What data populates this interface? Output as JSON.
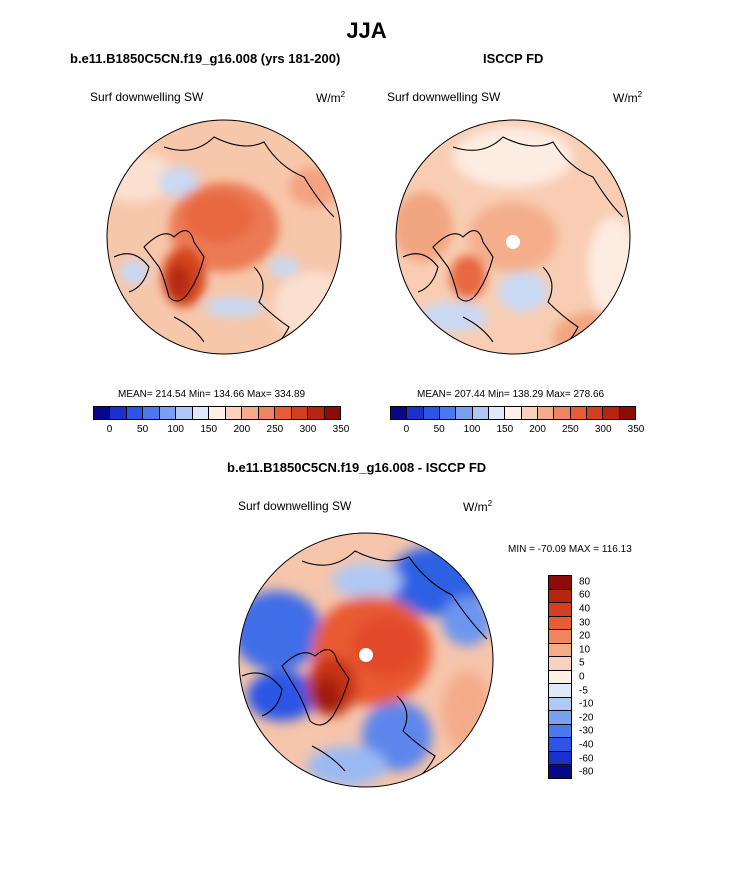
{
  "page_title": "JJA",
  "left_panel": {
    "title": "b.e11.B1850C5CN.f19_g16.008 (yrs 181-200)",
    "variable": "Surf downwelling SW",
    "units": "W/m",
    "units_exp": "2",
    "stats": "MEAN= 214.54  Min= 134.66  Max= 334.89"
  },
  "right_panel": {
    "title": "ISCCP FD",
    "variable": "Surf downwelling SW",
    "units": "W/m",
    "units_exp": "2",
    "stats": "MEAN= 207.44  Min= 138.29  Max= 278.66"
  },
  "horizontal_colorbar": {
    "colors": [
      "#08088a",
      "#1a2fcc",
      "#2a55e6",
      "#4a78ee",
      "#7aa0f2",
      "#b0c8f5",
      "#dfe9f9",
      "#fdf0e8",
      "#f9d2bd",
      "#f4ab8a",
      "#ee8460",
      "#e65c35",
      "#d43f1f",
      "#b52512",
      "#8c0d07"
    ],
    "ticks": [
      "0",
      "50",
      "100",
      "150",
      "200",
      "250",
      "300",
      "350"
    ]
  },
  "diff_panel": {
    "title": "b.e11.B1850C5CN.f19_g16.008 - ISCCP FD",
    "variable": "Surf downwelling SW",
    "units": "W/m",
    "units_exp": "2",
    "minmax": "MIN = -70.09 MAX = 116.13"
  },
  "vertical_colorbar": {
    "colors": [
      "#8c0d07",
      "#b52512",
      "#d43f1f",
      "#e65c35",
      "#ee8460",
      "#f4ab8a",
      "#f9d2bd",
      "#fdf0e8",
      "#dfe9f9",
      "#b0c8f5",
      "#7aa0f2",
      "#4a78ee",
      "#2a55e6",
      "#1a2fcc",
      "#08088a"
    ],
    "ticks": [
      "80",
      "60",
      "40",
      "30",
      "20",
      "10",
      "5",
      "0",
      "-5",
      "-10",
      "-20",
      "-30",
      "-40",
      "-60",
      "-80"
    ]
  }
}
